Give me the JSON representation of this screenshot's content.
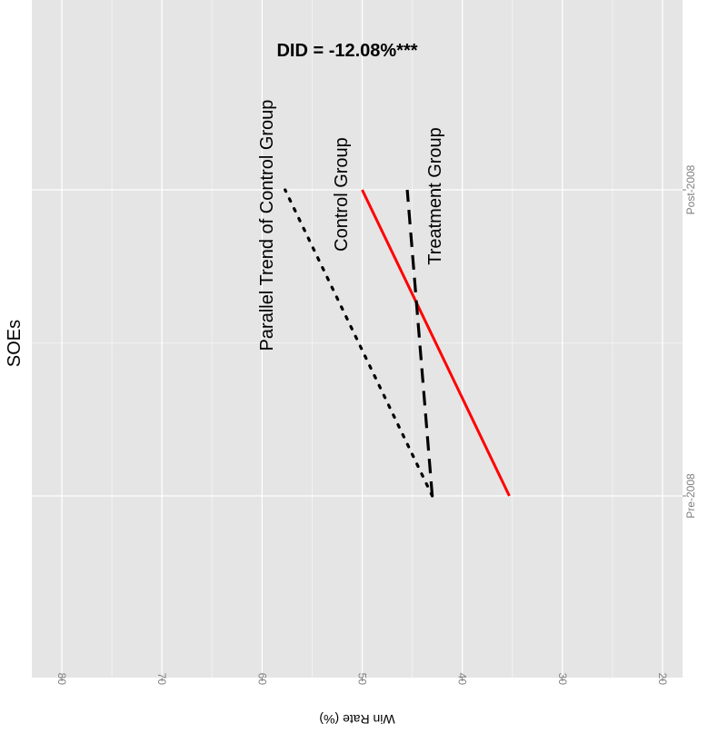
{
  "chart_data": {
    "type": "line",
    "title": "SOEs",
    "xlabel": "",
    "ylabel": "Win Rate (%)",
    "categories": [
      "Pre-2008",
      "Post-2008"
    ],
    "ylim": [
      18,
      83
    ],
    "yticks": [
      20,
      30,
      40,
      50,
      60,
      70,
      80
    ],
    "grid": true,
    "series": [
      {
        "name": "Control Group",
        "values": [
          35.3,
          50.0
        ],
        "color": "#ff0000",
        "style": "solid"
      },
      {
        "name": "Treatment Group",
        "values": [
          43.0,
          45.5
        ],
        "color": "#000000",
        "style": "dashed"
      },
      {
        "name": "Parallel Trend of Control Group",
        "values": [
          43.0,
          57.7
        ],
        "color": "#000000",
        "style": "dotted"
      }
    ],
    "annotations": [
      {
        "text": "DID = -12.08%***",
        "bold": true
      },
      {
        "text": "Control Group"
      },
      {
        "text": "Treatment Group"
      },
      {
        "text": "Parallel Trend of Control Group"
      }
    ]
  }
}
